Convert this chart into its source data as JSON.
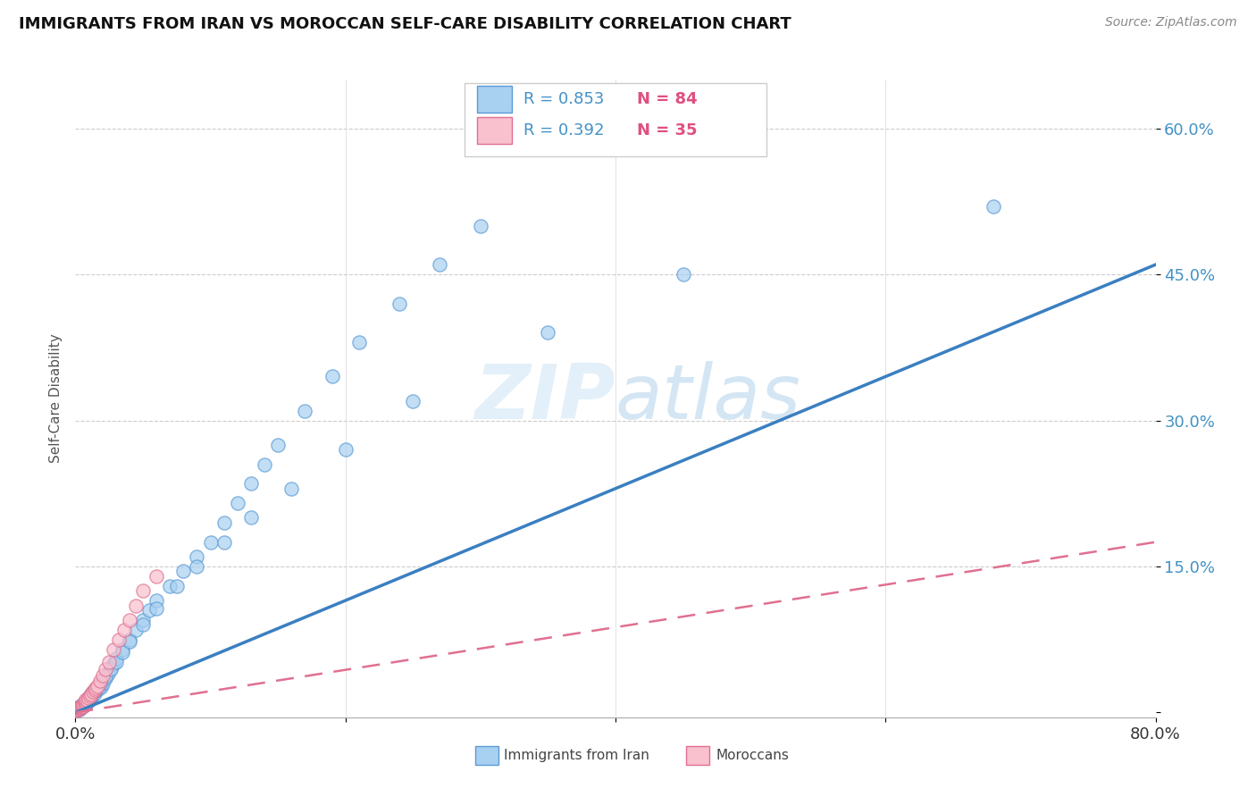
{
  "title": "IMMIGRANTS FROM IRAN VS MOROCCAN SELF-CARE DISABILITY CORRELATION CHART",
  "source": "Source: ZipAtlas.com",
  "ylabel": "Self-Care Disability",
  "y_ticks": [
    0.0,
    0.15,
    0.3,
    0.45,
    0.6
  ],
  "y_tick_labels": [
    "",
    "15.0%",
    "30.0%",
    "45.0%",
    "60.0%"
  ],
  "x_lim": [
    0.0,
    0.8
  ],
  "y_lim": [
    -0.005,
    0.65
  ],
  "legend_r1": "R = 0.853",
  "legend_n1": "N = 84",
  "legend_r2": "R = 0.392",
  "legend_n2": "N = 35",
  "color_iran": "#a8d0f0",
  "color_iran_edge": "#5b9bd5",
  "color_morocco": "#f9c0ce",
  "color_morocco_edge": "#e07090",
  "color_iran_line": "#3a7fc1",
  "color_morocco_line": "#e07090",
  "watermark_color": "#cce4f5",
  "iran_scatter_x": [
    0.001,
    0.002,
    0.002,
    0.003,
    0.003,
    0.004,
    0.004,
    0.005,
    0.005,
    0.006,
    0.006,
    0.007,
    0.007,
    0.008,
    0.008,
    0.009,
    0.009,
    0.01,
    0.01,
    0.011,
    0.011,
    0.012,
    0.012,
    0.013,
    0.013,
    0.014,
    0.015,
    0.015,
    0.016,
    0.017,
    0.018,
    0.019,
    0.02,
    0.022,
    0.024,
    0.026,
    0.028,
    0.03,
    0.035,
    0.04,
    0.045,
    0.05,
    0.055,
    0.06,
    0.07,
    0.08,
    0.09,
    0.1,
    0.11,
    0.12,
    0.13,
    0.14,
    0.15,
    0.17,
    0.19,
    0.21,
    0.24,
    0.27,
    0.3,
    0.003,
    0.005,
    0.007,
    0.009,
    0.012,
    0.015,
    0.018,
    0.022,
    0.026,
    0.03,
    0.035,
    0.04,
    0.05,
    0.06,
    0.075,
    0.09,
    0.11,
    0.13,
    0.16,
    0.2,
    0.25,
    0.35,
    0.45,
    0.68
  ],
  "iran_scatter_y": [
    0.002,
    0.003,
    0.005,
    0.004,
    0.006,
    0.005,
    0.007,
    0.006,
    0.008,
    0.007,
    0.009,
    0.008,
    0.01,
    0.009,
    0.011,
    0.01,
    0.013,
    0.012,
    0.015,
    0.014,
    0.017,
    0.016,
    0.019,
    0.018,
    0.021,
    0.02,
    0.023,
    0.022,
    0.025,
    0.024,
    0.027,
    0.026,
    0.03,
    0.035,
    0.04,
    0.045,
    0.05,
    0.055,
    0.065,
    0.075,
    0.085,
    0.095,
    0.105,
    0.115,
    0.13,
    0.145,
    0.16,
    0.175,
    0.195,
    0.215,
    0.235,
    0.255,
    0.275,
    0.31,
    0.345,
    0.38,
    0.42,
    0.46,
    0.5,
    0.003,
    0.006,
    0.01,
    0.014,
    0.019,
    0.024,
    0.03,
    0.037,
    0.044,
    0.052,
    0.062,
    0.073,
    0.09,
    0.107,
    0.13,
    0.15,
    0.175,
    0.2,
    0.23,
    0.27,
    0.32,
    0.39,
    0.45,
    0.52
  ],
  "morocco_scatter_x": [
    0.001,
    0.001,
    0.002,
    0.002,
    0.003,
    0.003,
    0.004,
    0.004,
    0.005,
    0.005,
    0.006,
    0.006,
    0.007,
    0.007,
    0.008,
    0.008,
    0.009,
    0.01,
    0.011,
    0.012,
    0.013,
    0.014,
    0.015,
    0.016,
    0.018,
    0.02,
    0.022,
    0.025,
    0.028,
    0.032,
    0.036,
    0.04,
    0.045,
    0.05,
    0.06
  ],
  "morocco_scatter_y": [
    0.002,
    0.003,
    0.003,
    0.004,
    0.004,
    0.005,
    0.005,
    0.006,
    0.006,
    0.007,
    0.007,
    0.009,
    0.009,
    0.011,
    0.01,
    0.013,
    0.012,
    0.015,
    0.017,
    0.019,
    0.021,
    0.023,
    0.025,
    0.027,
    0.032,
    0.038,
    0.044,
    0.052,
    0.065,
    0.075,
    0.085,
    0.095,
    0.11,
    0.125,
    0.14
  ],
  "iran_trend_x": [
    0.0,
    0.8
  ],
  "iran_trend_y": [
    0.0,
    0.46
  ],
  "morocco_trend_x": [
    0.0,
    0.8
  ],
  "morocco_trend_y": [
    0.0,
    0.175
  ]
}
